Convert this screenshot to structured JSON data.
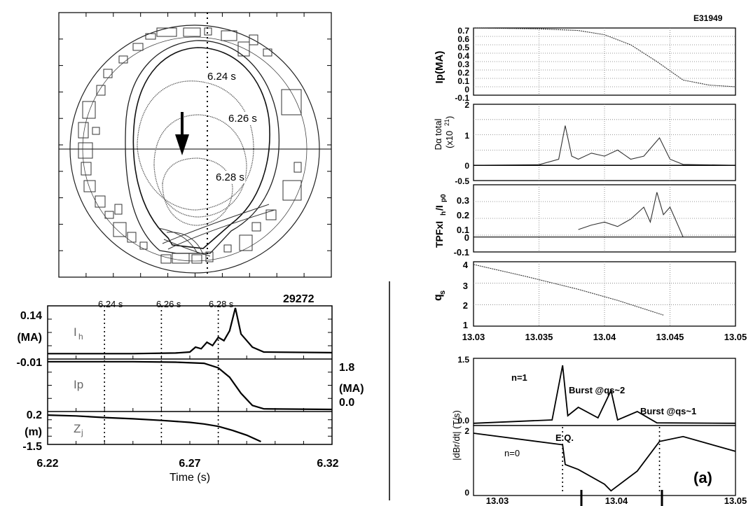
{
  "right_id": "E31949",
  "left_id": "29272",
  "flux": {
    "times": [
      "6.24 s",
      "6.26 s",
      "6.28 s"
    ]
  },
  "left_traces": {
    "top_ticks": [
      "6.24 s",
      "6.26 s",
      "6.28 s"
    ],
    "ih_label": "I",
    "ih_sub": "h",
    "ip_label": "Ip",
    "zj_label": "Z",
    "zj_sub": "j",
    "y_labels": {
      "ih_top": "0.14",
      "ih_unit": "(MA)",
      "ih_bottom": "-0.01",
      "zj_top": "0.2",
      "zj_unit": "(m)",
      "zj_bottom": "-1.5"
    },
    "ip_right": {
      "top": "1.8",
      "unit": "(MA)",
      "bottom": "0.0"
    },
    "x_ticks": [
      "6.22",
      "6.27",
      "6.32"
    ],
    "xlabel": "Time (s)"
  },
  "right_panels": {
    "ip_ylabel": "Ip(MA)",
    "ip_ticks": [
      "0.7",
      "0.6",
      "0.5",
      "0.4",
      "0.3",
      "0.2",
      "0.1",
      "0",
      "-0.1"
    ],
    "da_ylabel": "Dα total",
    "da_unit": "(x10",
    "da_sup": "21",
    "da_unit_end": ")",
    "da_ticks": [
      "2",
      "1",
      "0",
      "-0.5"
    ],
    "tpf_ylabel": "TPFxI",
    "tpf_sub1": "h",
    "tpf_mid": "/I",
    "tpf_sub2": "p0",
    "tpf_ticks": [
      "0.3",
      "0.2",
      "0.1",
      "0",
      "-0.1"
    ],
    "qs_ylabel": "q",
    "qs_sub": "s",
    "qs_ticks": [
      "4",
      "3",
      "2",
      "1"
    ],
    "x_ticks": [
      "13.03",
      "13.035",
      "13.04",
      "13.045",
      "13.05"
    ],
    "db_ylabel": "|dBr/dt| (T/s)",
    "db_ticks": [
      "1.5",
      "0.0",
      "2",
      "0"
    ],
    "n1_label": "n=1",
    "burst2": "Burst @qs~2",
    "burst1": "Burst @qs~1",
    "n0_label": "n=0",
    "eq_label": "E.Q.",
    "panel_label": "(a)",
    "bottom_ticks": [
      "13.03",
      "13.04",
      "13.05"
    ]
  },
  "chart_data": [
    {
      "type": "line",
      "title": "",
      "xlabel": "Time (s)",
      "xlim": [
        6.22,
        6.32
      ],
      "series": [
        {
          "name": "Ih",
          "unit": "MA",
          "ylim": [
            -0.01,
            0.14
          ],
          "x": [
            6.22,
            6.25,
            6.265,
            6.27,
            6.272,
            6.274,
            6.276,
            6.278,
            6.28,
            6.282,
            6.284,
            6.286,
            6.288,
            6.292,
            6.296,
            6.32
          ],
          "y": [
            0.0,
            0.0,
            0.002,
            0.005,
            0.02,
            0.015,
            0.035,
            0.025,
            0.05,
            0.04,
            0.07,
            0.14,
            0.06,
            0.02,
            0.005,
            0.003
          ]
        },
        {
          "name": "Ip",
          "unit": "MA",
          "ylim": [
            0.0,
            1.8
          ],
          "x": [
            6.22,
            6.25,
            6.265,
            6.275,
            6.28,
            6.284,
            6.288,
            6.292,
            6.296,
            6.32
          ],
          "y": [
            1.78,
            1.78,
            1.76,
            1.72,
            1.55,
            1.2,
            0.6,
            0.15,
            0.02,
            0.0
          ]
        },
        {
          "name": "Zj",
          "unit": "m",
          "ylim": [
            -1.5,
            0.2
          ],
          "x": [
            6.22,
            6.23,
            6.24,
            6.25,
            6.26,
            6.27,
            6.275,
            6.28,
            6.285,
            6.29,
            6.295
          ],
          "y": [
            0.15,
            0.1,
            0.0,
            -0.08,
            -0.18,
            -0.3,
            -0.4,
            -0.55,
            -0.8,
            -1.1,
            -1.5
          ]
        }
      ]
    },
    {
      "type": "line",
      "xlabel": "",
      "xlim": [
        13.03,
        13.05
      ],
      "series": [
        {
          "name": "Ip(MA)",
          "ylim": [
            -0.1,
            0.7
          ],
          "x": [
            13.03,
            13.035,
            13.038,
            13.04,
            13.042,
            13.044,
            13.046,
            13.048,
            13.05
          ],
          "y": [
            0.7,
            0.69,
            0.67,
            0.62,
            0.5,
            0.3,
            0.08,
            0.02,
            0.0
          ]
        },
        {
          "name": "Dα total (x10^21)",
          "ylim": [
            -0.5,
            2
          ],
          "x": [
            13.03,
            13.035,
            13.0365,
            13.037,
            13.0375,
            13.038,
            13.039,
            13.04,
            13.041,
            13.042,
            13.043,
            13.0442,
            13.045,
            13.046,
            13.05
          ],
          "y": [
            0.0,
            0.02,
            0.2,
            1.3,
            0.3,
            0.2,
            0.4,
            0.3,
            0.5,
            0.2,
            0.3,
            0.9,
            0.2,
            0.03,
            0.0
          ]
        },
        {
          "name": "TPFxIh/Ip0",
          "ylim": [
            -0.1,
            0.35
          ],
          "x": [
            13.038,
            13.039,
            13.04,
            13.041,
            13.042,
            13.043,
            13.0435,
            13.044,
            13.0445,
            13.045,
            13.0455,
            13.046
          ],
          "y": [
            0.05,
            0.08,
            0.1,
            0.07,
            0.12,
            0.2,
            0.1,
            0.3,
            0.15,
            0.2,
            0.1,
            0.0
          ]
        },
        {
          "name": "qs",
          "ylim": [
            0.5,
            4
          ],
          "x": [
            13.03,
            13.034,
            13.038,
            13.041,
            13.0445
          ],
          "y": [
            3.85,
            3.2,
            2.5,
            1.9,
            1.1
          ]
        }
      ]
    },
    {
      "type": "line",
      "ylabel": "|dBr/dt| (T/s)",
      "xlim": [
        13.03,
        13.05
      ],
      "series": [
        {
          "name": "n=1",
          "ylim": [
            0.0,
            1.5
          ],
          "x": [
            13.03,
            13.036,
            13.0368,
            13.0372,
            13.038,
            13.0395,
            13.0405,
            13.041,
            13.0425,
            13.044,
            13.05
          ],
          "y": [
            0.02,
            0.1,
            1.4,
            0.2,
            0.4,
            0.15,
            0.8,
            0.1,
            0.3,
            0.03,
            0.02
          ]
        },
        {
          "name": "n=0",
          "ylim": [
            0,
            2
          ],
          "x": [
            13.03,
            13.0368,
            13.037,
            13.038,
            13.04,
            13.0405,
            13.0425,
            13.0442,
            13.046,
            13.05
          ],
          "y": [
            1.85,
            1.5,
            0.9,
            0.75,
            0.3,
            0.1,
            0.7,
            1.6,
            1.75,
            1.3
          ]
        }
      ]
    }
  ]
}
